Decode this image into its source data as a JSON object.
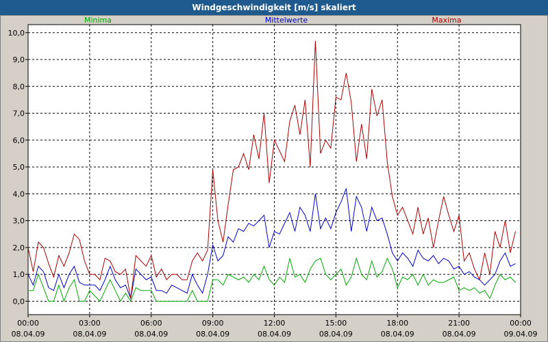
{
  "window": {
    "title": "Windgeschwindigkeit [m/s] skaliert"
  },
  "chart_data": {
    "type": "line",
    "title": "Windgeschwindigkeit [m/s] skaliert",
    "ylim": [
      -0.5,
      10.3
    ],
    "yticks": [
      "0,0",
      "1,0",
      "2,0",
      "3,0",
      "4,0",
      "5,0",
      "6,0",
      "7,0",
      "8,0",
      "9,0",
      "10,0"
    ],
    "xlim": [
      0,
      24
    ],
    "xticks": [
      {
        "time": "00:00",
        "date": "08.04.09"
      },
      {
        "time": "03:00",
        "date": "08.04.09"
      },
      {
        "time": "06:00",
        "date": "08.04.09"
      },
      {
        "time": "09:00",
        "date": "08.04.09"
      },
      {
        "time": "12:00",
        "date": "08.04.09"
      },
      {
        "time": "15:00",
        "date": "08.04.09"
      },
      {
        "time": "18:00",
        "date": "08.04.09"
      },
      {
        "time": "21:00",
        "date": "08.04.09"
      },
      {
        "time": "00:00",
        "date": "09.04.09"
      }
    ],
    "grid": true,
    "series": [
      {
        "name": "Minima",
        "color": "#00aa00",
        "points": [
          [
            0,
            0.4
          ],
          [
            0.25,
            0.4
          ],
          [
            0.5,
            1.0
          ],
          [
            0.75,
            0.5
          ],
          [
            1,
            0.0
          ],
          [
            1.25,
            0.0
          ],
          [
            1.5,
            0.6
          ],
          [
            1.75,
            0.0
          ],
          [
            2,
            0.5
          ],
          [
            2.25,
            0.8
          ],
          [
            2.5,
            0.0
          ],
          [
            2.75,
            0.0
          ],
          [
            3,
            0.4
          ],
          [
            3.25,
            0.2
          ],
          [
            3.5,
            0.0
          ],
          [
            3.75,
            0.4
          ],
          [
            4,
            0.8
          ],
          [
            4.25,
            0.4
          ],
          [
            4.5,
            0.0
          ],
          [
            4.75,
            0.3
          ],
          [
            5,
            0.0
          ],
          [
            5.25,
            0.5
          ],
          [
            5.5,
            0.4
          ],
          [
            5.75,
            0.4
          ],
          [
            6,
            0.4
          ],
          [
            6.25,
            0.0
          ],
          [
            6.5,
            0.0
          ],
          [
            6.75,
            0.0
          ],
          [
            7,
            0.0
          ],
          [
            7.25,
            0.0
          ],
          [
            7.5,
            0.0
          ],
          [
            7.75,
            0.0
          ],
          [
            8,
            0.4
          ],
          [
            8.25,
            0.0
          ],
          [
            8.5,
            0.0
          ],
          [
            8.75,
            0.0
          ],
          [
            9,
            0.8
          ],
          [
            9.25,
            0.8
          ],
          [
            9.5,
            0.6
          ],
          [
            9.75,
            1.0
          ],
          [
            10,
            0.9
          ],
          [
            10.25,
            0.8
          ],
          [
            10.5,
            0.9
          ],
          [
            10.75,
            0.7
          ],
          [
            11,
            1.0
          ],
          [
            11.25,
            0.8
          ],
          [
            11.5,
            1.3
          ],
          [
            11.75,
            0.8
          ],
          [
            12,
            0.6
          ],
          [
            12.25,
            0.9
          ],
          [
            12.5,
            0.7
          ],
          [
            12.75,
            1.6
          ],
          [
            13,
            0.9
          ],
          [
            13.25,
            1.0
          ],
          [
            13.5,
            0.7
          ],
          [
            13.75,
            1.2
          ],
          [
            14,
            1.5
          ],
          [
            14.25,
            1.6
          ],
          [
            14.5,
            1.0
          ],
          [
            14.75,
            0.8
          ],
          [
            15,
            1.0
          ],
          [
            15.25,
            1.2
          ],
          [
            15.5,
            0.6
          ],
          [
            15.75,
            0.9
          ],
          [
            16,
            1.6
          ],
          [
            16.25,
            1.0
          ],
          [
            16.5,
            0.8
          ],
          [
            16.75,
            1.5
          ],
          [
            17,
            0.9
          ],
          [
            17.25,
            1.1
          ],
          [
            17.5,
            1.6
          ],
          [
            17.75,
            1.2
          ],
          [
            18,
            0.5
          ],
          [
            18.25,
            0.9
          ],
          [
            18.5,
            0.8
          ],
          [
            18.75,
            1.0
          ],
          [
            19,
            0.6
          ],
          [
            19.25,
            1.0
          ],
          [
            19.5,
            0.6
          ],
          [
            19.75,
            0.8
          ],
          [
            20,
            0.7
          ],
          [
            20.25,
            0.7
          ],
          [
            20.5,
            0.8
          ],
          [
            20.75,
            0.9
          ],
          [
            21,
            0.4
          ],
          [
            21.25,
            0.5
          ],
          [
            21.5,
            0.4
          ],
          [
            21.75,
            0.5
          ],
          [
            22,
            0.3
          ],
          [
            22.25,
            0.4
          ],
          [
            22.5,
            0.1
          ],
          [
            22.75,
            0.6
          ],
          [
            23,
            1.0
          ],
          [
            23.25,
            0.8
          ],
          [
            23.5,
            0.9
          ],
          [
            23.75,
            0.7
          ]
        ]
      },
      {
        "name": "Mittelwerte",
        "color": "#0000cc",
        "points": [
          [
            0,
            1.0
          ],
          [
            0.25,
            0.6
          ],
          [
            0.5,
            1.3
          ],
          [
            0.75,
            1.1
          ],
          [
            1,
            0.5
          ],
          [
            1.25,
            0.4
          ],
          [
            1.5,
            1.0
          ],
          [
            1.75,
            0.5
          ],
          [
            2,
            1.0
          ],
          [
            2.25,
            1.3
          ],
          [
            2.5,
            0.7
          ],
          [
            2.75,
            0.6
          ],
          [
            3,
            0.6
          ],
          [
            3.25,
            0.6
          ],
          [
            3.5,
            0.4
          ],
          [
            3.75,
            0.8
          ],
          [
            4,
            1.3
          ],
          [
            4.25,
            0.8
          ],
          [
            4.5,
            0.5
          ],
          [
            4.75,
            0.6
          ],
          [
            5,
            0.1
          ],
          [
            5.25,
            1.2
          ],
          [
            5.5,
            1.0
          ],
          [
            5.75,
            0.8
          ],
          [
            6,
            0.9
          ],
          [
            6.25,
            0.4
          ],
          [
            6.5,
            0.4
          ],
          [
            6.75,
            0.3
          ],
          [
            7,
            0.6
          ],
          [
            7.25,
            0.5
          ],
          [
            7.5,
            0.4
          ],
          [
            7.75,
            0.3
          ],
          [
            8,
            1.0
          ],
          [
            8.25,
            0.6
          ],
          [
            8.5,
            0.3
          ],
          [
            8.75,
            1.0
          ],
          [
            9,
            2.1
          ],
          [
            9.25,
            1.5
          ],
          [
            9.5,
            1.7
          ],
          [
            9.75,
            2.4
          ],
          [
            10,
            2.2
          ],
          [
            10.25,
            2.7
          ],
          [
            10.5,
            2.6
          ],
          [
            10.75,
            2.9
          ],
          [
            11,
            2.8
          ],
          [
            11.25,
            3.0
          ],
          [
            11.5,
            3.2
          ],
          [
            11.75,
            2.0
          ],
          [
            12,
            2.6
          ],
          [
            12.25,
            2.5
          ],
          [
            12.5,
            2.9
          ],
          [
            12.75,
            3.3
          ],
          [
            13,
            2.6
          ],
          [
            13.25,
            3.5
          ],
          [
            13.5,
            3.2
          ],
          [
            13.75,
            2.6
          ],
          [
            14,
            4.0
          ],
          [
            14.25,
            2.7
          ],
          [
            14.5,
            3.1
          ],
          [
            14.75,
            2.7
          ],
          [
            15,
            3.3
          ],
          [
            15.25,
            3.7
          ],
          [
            15.5,
            4.2
          ],
          [
            15.75,
            2.6
          ],
          [
            16,
            3.9
          ],
          [
            16.25,
            3.5
          ],
          [
            16.5,
            2.6
          ],
          [
            16.75,
            3.5
          ],
          [
            17,
            3.0
          ],
          [
            17.25,
            3.1
          ],
          [
            17.5,
            2.5
          ],
          [
            17.75,
            1.8
          ],
          [
            18,
            1.5
          ],
          [
            18.25,
            1.8
          ],
          [
            18.5,
            1.6
          ],
          [
            18.75,
            1.3
          ],
          [
            19,
            1.9
          ],
          [
            19.25,
            1.6
          ],
          [
            19.5,
            1.5
          ],
          [
            19.75,
            1.7
          ],
          [
            20,
            1.4
          ],
          [
            20.25,
            1.6
          ],
          [
            20.5,
            1.5
          ],
          [
            20.75,
            1.2
          ],
          [
            21,
            1.3
          ],
          [
            21.25,
            1.0
          ],
          [
            21.5,
            1.1
          ],
          [
            21.75,
            0.9
          ],
          [
            22,
            0.8
          ],
          [
            22.25,
            0.6
          ],
          [
            22.5,
            0.8
          ],
          [
            22.75,
            1.0
          ],
          [
            23,
            1.5
          ],
          [
            23.25,
            1.8
          ],
          [
            23.5,
            1.3
          ],
          [
            23.75,
            1.4
          ]
        ]
      },
      {
        "name": "Maxima",
        "color": "#aa0000",
        "points": [
          [
            0,
            2.0
          ],
          [
            0.25,
            1.1
          ],
          [
            0.5,
            2.2
          ],
          [
            0.75,
            2.0
          ],
          [
            1,
            1.4
          ],
          [
            1.25,
            0.9
          ],
          [
            1.5,
            1.7
          ],
          [
            1.75,
            1.3
          ],
          [
            2,
            1.8
          ],
          [
            2.25,
            2.5
          ],
          [
            2.5,
            2.3
          ],
          [
            2.75,
            1.5
          ],
          [
            3,
            1.0
          ],
          [
            3.25,
            1.0
          ],
          [
            3.5,
            0.8
          ],
          [
            3.75,
            1.6
          ],
          [
            4,
            1.5
          ],
          [
            4.25,
            1.1
          ],
          [
            4.5,
            1.0
          ],
          [
            4.75,
            1.2
          ],
          [
            5,
            0.1
          ],
          [
            5.25,
            1.7
          ],
          [
            5.5,
            1.5
          ],
          [
            5.75,
            1.3
          ],
          [
            6,
            1.7
          ],
          [
            6.25,
            0.9
          ],
          [
            6.5,
            1.2
          ],
          [
            6.75,
            0.8
          ],
          [
            7,
            1.0
          ],
          [
            7.25,
            1.0
          ],
          [
            7.5,
            0.8
          ],
          [
            7.75,
            0.8
          ],
          [
            8,
            1.5
          ],
          [
            8.25,
            1.8
          ],
          [
            8.5,
            1.5
          ],
          [
            8.75,
            1.9
          ],
          [
            9,
            4.9
          ],
          [
            9.25,
            3.0
          ],
          [
            9.5,
            2.2
          ],
          [
            9.75,
            3.6
          ],
          [
            10,
            4.9
          ],
          [
            10.25,
            5.0
          ],
          [
            10.5,
            5.5
          ],
          [
            10.75,
            4.9
          ],
          [
            11,
            6.2
          ],
          [
            11.25,
            5.3
          ],
          [
            11.5,
            7.0
          ],
          [
            11.75,
            4.4
          ],
          [
            12,
            6.0
          ],
          [
            12.25,
            5.6
          ],
          [
            12.5,
            5.2
          ],
          [
            12.75,
            6.7
          ],
          [
            13,
            7.3
          ],
          [
            13.25,
            6.2
          ],
          [
            13.5,
            7.5
          ],
          [
            13.75,
            5.0
          ],
          [
            14,
            9.7
          ],
          [
            14.25,
            5.5
          ],
          [
            14.5,
            6.0
          ],
          [
            14.75,
            5.7
          ],
          [
            15,
            7.6
          ],
          [
            15.25,
            7.5
          ],
          [
            15.5,
            8.5
          ],
          [
            15.75,
            7.4
          ],
          [
            16,
            5.2
          ],
          [
            16.25,
            6.6
          ],
          [
            16.5,
            5.3
          ],
          [
            16.75,
            7.9
          ],
          [
            17,
            6.9
          ],
          [
            17.25,
            7.5
          ],
          [
            17.5,
            5.2
          ],
          [
            17.75,
            3.9
          ],
          [
            18,
            3.2
          ],
          [
            18.25,
            3.5
          ],
          [
            18.5,
            3.0
          ],
          [
            18.75,
            2.5
          ],
          [
            19,
            3.5
          ],
          [
            19.25,
            2.5
          ],
          [
            19.5,
            3.1
          ],
          [
            19.75,
            2.0
          ],
          [
            20,
            3.0
          ],
          [
            20.25,
            3.9
          ],
          [
            20.5,
            3.2
          ],
          [
            20.75,
            2.6
          ],
          [
            21,
            3.2
          ],
          [
            21.25,
            1.5
          ],
          [
            21.5,
            1.8
          ],
          [
            21.75,
            1.2
          ],
          [
            22,
            0.8
          ],
          [
            22.25,
            1.8
          ],
          [
            22.5,
            1.0
          ],
          [
            22.75,
            2.6
          ],
          [
            23,
            2.0
          ],
          [
            23.25,
            3.0
          ],
          [
            23.5,
            1.8
          ],
          [
            23.75,
            2.6
          ]
        ]
      }
    ]
  }
}
